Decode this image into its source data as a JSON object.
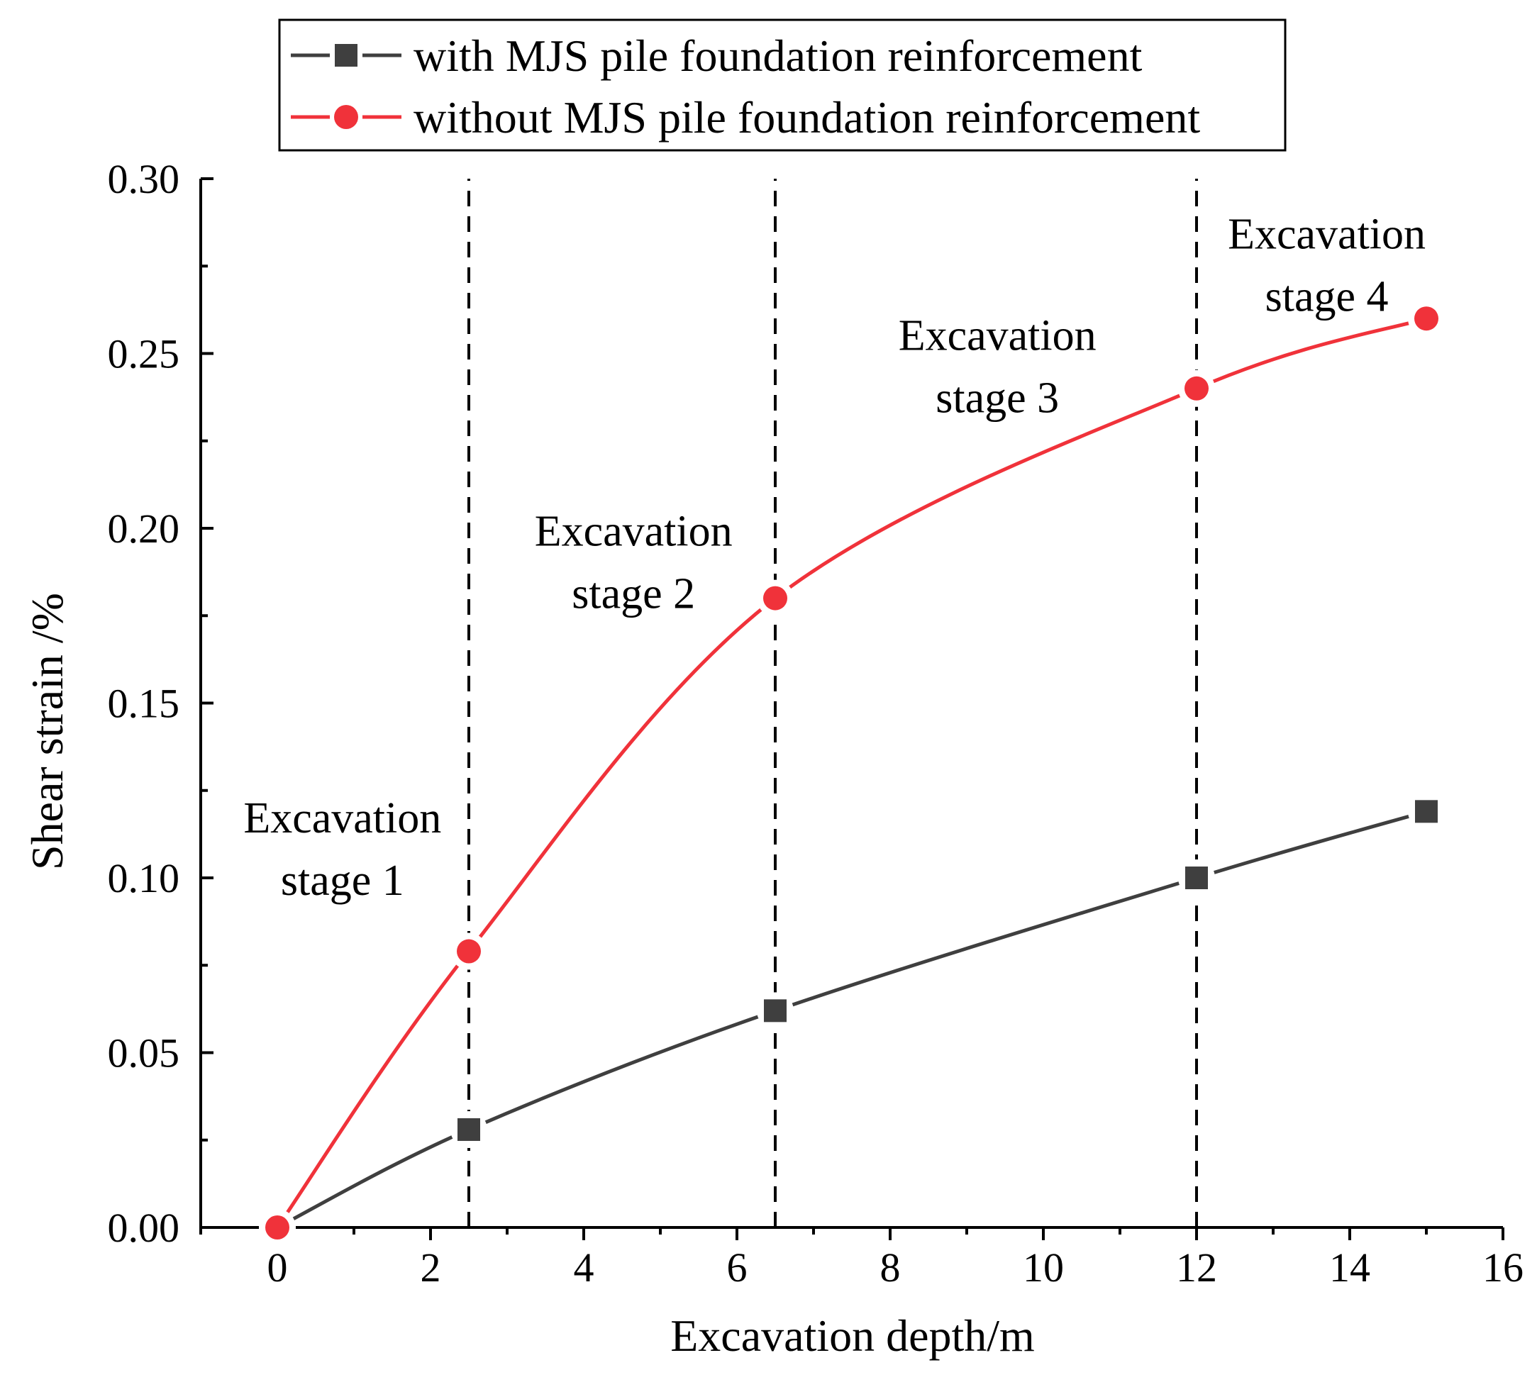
{
  "chart_data": {
    "type": "line",
    "title": "",
    "xlabel": "Excavation depth/m",
    "ylabel": "Shear strain /%",
    "xlim": [
      -1,
      16
    ],
    "ylim": [
      0,
      0.3
    ],
    "x_ticks": [
      0,
      2,
      4,
      6,
      8,
      10,
      12,
      14,
      16
    ],
    "x_tick_labels": [
      "0",
      "2",
      "4",
      "6",
      "8",
      "10",
      "12",
      "14",
      "16"
    ],
    "y_ticks": [
      0,
      0.05,
      0.1,
      0.15,
      0.2,
      0.25,
      0.3
    ],
    "y_tick_labels": [
      "0.00",
      "0.05",
      "0.10",
      "0.15",
      "0.20",
      "0.25",
      "0.30"
    ],
    "grid": false,
    "legend_position": "top",
    "stage_boundaries": [
      2.5,
      6.5,
      12
    ],
    "series": [
      {
        "name": "with MJS pile foundation reinforcement",
        "color": "#3f3f3f",
        "marker": "square",
        "x": [
          0,
          2.5,
          6.5,
          12,
          15
        ],
        "y": [
          0,
          0.028,
          0.062,
          0.1,
          0.119
        ]
      },
      {
        "name": "without MJS pile foundation reinforcement",
        "color": "#f0323a",
        "marker": "circle",
        "x": [
          0,
          2.5,
          6.5,
          12,
          15
        ],
        "y": [
          0,
          0.079,
          0.18,
          0.24,
          0.26
        ]
      }
    ],
    "annotations": [
      {
        "lines": [
          "Excavation",
          "stage 1"
        ],
        "x": 0.85,
        "y": 0.113
      },
      {
        "lines": [
          "Excavation",
          "stage 2"
        ],
        "x": 4.65,
        "y": 0.195
      },
      {
        "lines": [
          "Excavation",
          "stage 3"
        ],
        "x": 9.4,
        "y": 0.251
      },
      {
        "lines": [
          "Excavation",
          "stage 4"
        ],
        "x": 13.7,
        "y": 0.28
      }
    ]
  }
}
